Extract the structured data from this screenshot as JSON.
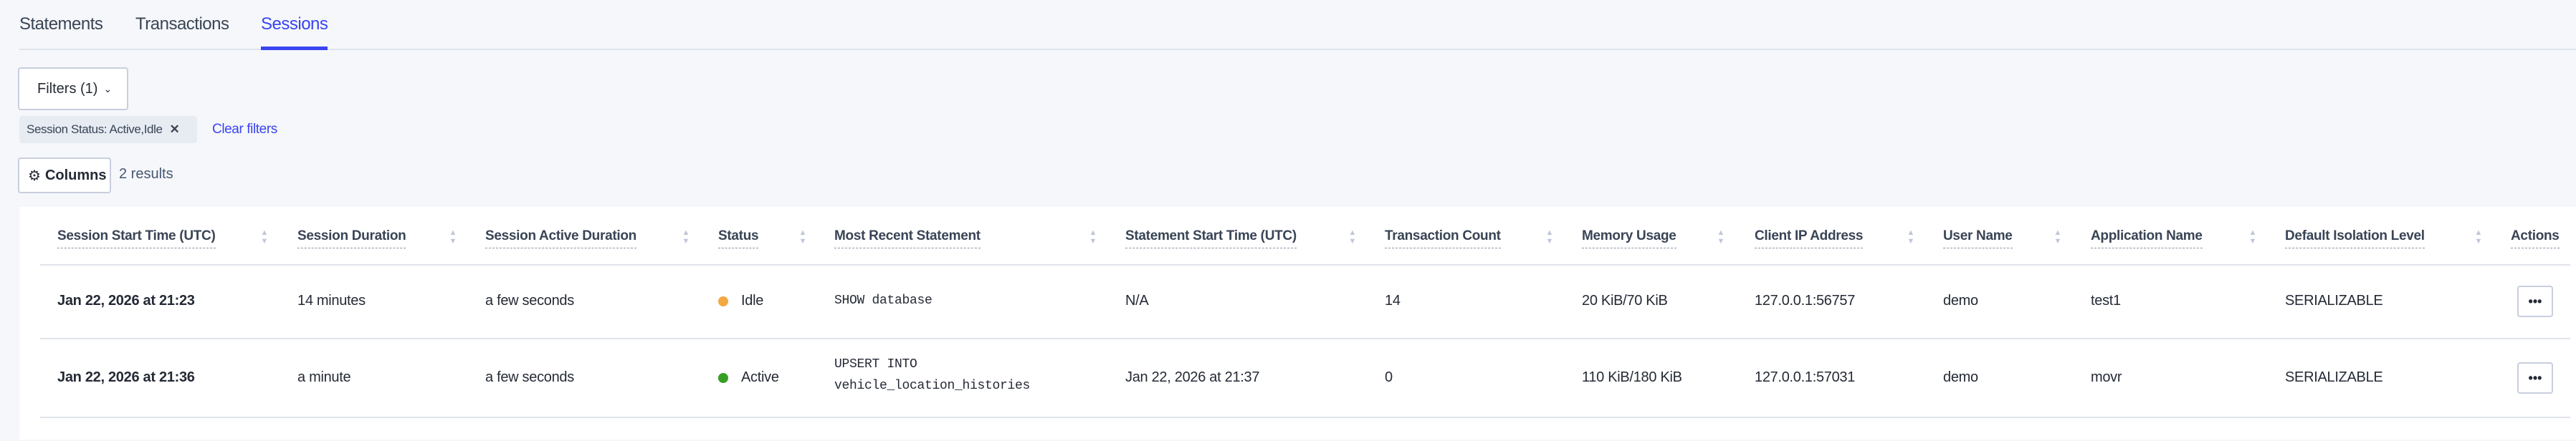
{
  "tabs": [
    {
      "label": "Statements"
    },
    {
      "label": "Transactions"
    },
    {
      "label": "Sessions",
      "active": true
    }
  ],
  "filters": {
    "button_label": "Filters (1)",
    "chip_label": "Session Status: Active,Idle",
    "clear_label": "Clear filters"
  },
  "columns_button": "Columns",
  "results_count": "2 results",
  "colors": {
    "accent": "#3a44f0",
    "idle": "#f5a742",
    "active": "#37a024"
  },
  "table": {
    "headers": [
      "Session Start Time (UTC)",
      "Session Duration",
      "Session Active Duration",
      "Status",
      "Most Recent Statement",
      "Statement Start Time (UTC)",
      "Transaction Count",
      "Memory Usage",
      "Client IP Address",
      "User Name",
      "Application Name",
      "Default Isolation Level",
      "Actions"
    ],
    "rows": [
      {
        "start": "Jan 22, 2026 at 21:23",
        "duration": "14 minutes",
        "active_duration": "a few seconds",
        "status": "Idle",
        "statement_lines": [
          "SHOW database"
        ],
        "stmt_start": "N/A",
        "tx_count": "14",
        "memory": "20 KiB/70 KiB",
        "ip": "127.0.0.1:56757",
        "user": "demo",
        "app": "test1",
        "isolation": "SERIALIZABLE",
        "actions": "•••"
      },
      {
        "start": "Jan 22, 2026 at 21:36",
        "duration": "a minute",
        "active_duration": "a few seconds",
        "status": "Active",
        "statement_lines": [
          "UPSERT INTO",
          "vehicle_location_histories"
        ],
        "stmt_start": "Jan 22, 2026 at 21:37",
        "tx_count": "0",
        "memory": "110 KiB/180 KiB",
        "ip": "127.0.0.1:57031",
        "user": "demo",
        "app": "movr",
        "isolation": "SERIALIZABLE",
        "actions": "•••"
      }
    ]
  }
}
